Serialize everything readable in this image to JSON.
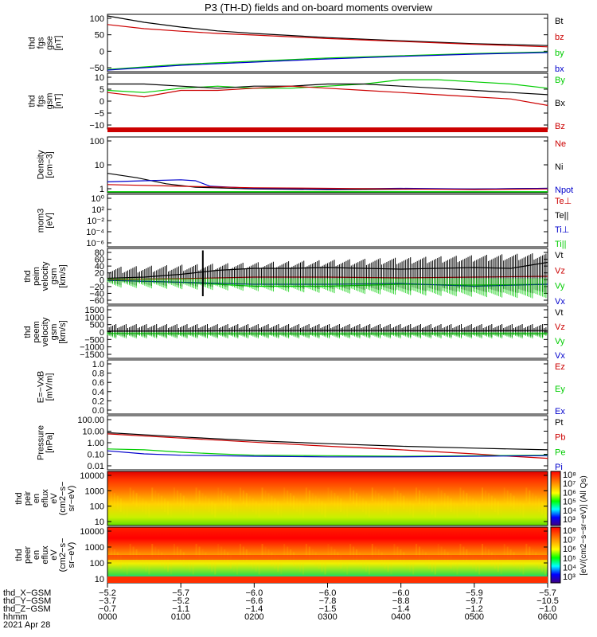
{
  "title": "P3 (TH-D) fields and on-board moments overview",
  "colors": {
    "black": "#000000",
    "red": "#cc0000",
    "green": "#00cc00",
    "blue": "#0000cc"
  },
  "chart_data": [
    {
      "type": "line",
      "ylabel": [
        "thd",
        "fgs",
        "gse",
        "[nT]"
      ],
      "ylim": [
        -70,
        110
      ],
      "ticks": [
        "100",
        "50",
        "0",
        "−50"
      ],
      "legend": [
        {
          "name": "Bt",
          "color": "black"
        },
        {
          "name": "bz",
          "color": "red"
        },
        {
          "name": "by",
          "color": "green"
        },
        {
          "name": "bx",
          "color": "blue"
        }
      ],
      "series": [
        {
          "name": "Bt",
          "color": "black",
          "x": [
            0,
            0.5,
            1,
            1.5,
            2,
            3,
            4,
            5,
            6
          ],
          "y": [
            105,
            85,
            70,
            58,
            50,
            37,
            27,
            18,
            12
          ]
        },
        {
          "name": "bz",
          "color": "red",
          "x": [
            0,
            0.5,
            1,
            1.5,
            2,
            3,
            4,
            5,
            6
          ],
          "y": [
            78,
            65,
            57,
            50,
            45,
            34,
            25,
            16,
            8
          ]
        },
        {
          "name": "by",
          "color": "green",
          "x": [
            0,
            1,
            2,
            3,
            4,
            5,
            6
          ],
          "y": [
            -63,
            -47,
            -37,
            -27,
            -20,
            -13,
            -8
          ]
        },
        {
          "name": "bx",
          "color": "blue",
          "x": [
            0,
            1,
            2,
            3,
            4,
            5,
            6
          ],
          "y": [
            -65,
            -50,
            -40,
            -30,
            -22,
            -15,
            -10
          ]
        }
      ]
    },
    {
      "type": "line",
      "ylabel": [
        "thd",
        "fgs",
        "gsm",
        "[nT]"
      ],
      "ylim": [
        -15,
        11
      ],
      "ticks": [
        "10",
        "5",
        "0",
        "−5",
        "−10"
      ],
      "legend": [
        {
          "name": "By",
          "color": "green"
        },
        {
          "name": "Bx",
          "color": "black"
        },
        {
          "name": "Bz",
          "color": "red"
        }
      ],
      "series": [
        {
          "name": "By",
          "color": "green",
          "x": [
            0,
            0.5,
            1,
            1.5,
            2,
            2.5,
            3,
            3.5,
            4,
            4.5,
            5,
            5.5,
            6
          ],
          "y": [
            3,
            2,
            4,
            5,
            4,
            4,
            5,
            6,
            8,
            8,
            7,
            6,
            4
          ]
        },
        {
          "name": "Bx",
          "color": "black",
          "x": [
            0,
            0.5,
            1,
            1.5,
            2,
            2.5,
            3,
            3.5,
            4,
            4.5,
            5,
            5.5,
            6
          ],
          "y": [
            6,
            6,
            5,
            4,
            5,
            5,
            6,
            6,
            5,
            4,
            3,
            2,
            1
          ]
        },
        {
          "name": "Bz",
          "color": "red",
          "x": [
            0,
            0.5,
            1,
            1.5,
            2,
            2.5,
            3,
            3.5,
            4,
            4.5,
            5,
            5.5,
            6
          ],
          "y": [
            2,
            0,
            3,
            3,
            4,
            5,
            4,
            3,
            2,
            1,
            0,
            -1,
            -4
          ]
        }
      ]
    },
    {
      "type": "line",
      "ylabel": [
        "Density",
        "[cm−3]"
      ],
      "log": true,
      "ylim": [
        0.5,
        200
      ],
      "ticks": [
        "100",
        "10",
        "1"
      ],
      "legend": [
        {
          "name": "Ne",
          "color": "red"
        },
        {
          "name": "Ni",
          "color": "black"
        },
        {
          "name": "Npot",
          "color": "blue"
        }
      ],
      "series": [
        {
          "name": "Ni",
          "color": "black",
          "x": [
            0,
            0.4,
            0.8,
            1.2,
            2,
            3,
            4,
            5,
            6
          ],
          "y": [
            4,
            2.5,
            1.3,
            0.9,
            0.75,
            0.7,
            0.72,
            0.75,
            0.8
          ]
        },
        {
          "name": "Npot",
          "color": "blue",
          "x": [
            0,
            0.5,
            1,
            1.2,
            1.4,
            2,
            3,
            4,
            5,
            6
          ],
          "y": [
            1.6,
            1.8,
            2.0,
            1.8,
            1.0,
            0.8,
            0.75,
            0.8,
            0.75,
            0.8
          ]
        },
        {
          "name": "Ne",
          "color": "red",
          "x": [
            0,
            1,
            2,
            3,
            4,
            5,
            6
          ],
          "y": [
            1.2,
            1.0,
            0.85,
            0.8,
            0.75,
            0.7,
            0.75
          ]
        }
      ]
    },
    {
      "type": "line",
      "ylabel": [
        "mom3",
        "[eV]"
      ],
      "log": true,
      "ylim": [
        1e-06,
        100
      ],
      "ticks": [
        "10⁰",
        "10²",
        "10⁻²",
        "10⁻⁴",
        "10⁻⁶"
      ],
      "legend": [
        {
          "name": "Te⊥",
          "color": "red"
        },
        {
          "name": "Te||",
          "color": "black"
        },
        {
          "name": "Ti⊥",
          "color": "blue"
        },
        {
          "name": "Ti||",
          "color": "green"
        }
      ],
      "series": []
    },
    {
      "type": "line",
      "ylabel": [
        "thd",
        "peim",
        "velocity",
        "gsm",
        "[km/s]"
      ],
      "ylim": [
        -60,
        80
      ],
      "ticks": [
        "80",
        "60",
        "40",
        "20",
        "0",
        "−20",
        "−40",
        "−60"
      ],
      "legend": [
        {
          "name": "Vt",
          "color": "black"
        },
        {
          "name": "Vz",
          "color": "red"
        },
        {
          "name": "Vy",
          "color": "green"
        },
        {
          "name": "Vx",
          "color": "blue"
        }
      ],
      "series": [
        {
          "name": "Vt",
          "color": "black",
          "x": [
            0,
            0.5,
            1,
            1.5,
            2,
            2.5,
            3,
            3.5,
            4,
            4.5,
            5,
            5.5,
            6
          ],
          "y": [
            5,
            8,
            15,
            25,
            30,
            30,
            32,
            30,
            28,
            30,
            32,
            30,
            45
          ]
        },
        {
          "name": "Vz",
          "color": "red",
          "x": [
            0,
            1,
            2,
            3,
            4,
            5,
            6
          ],
          "y": [
            2,
            4,
            8,
            8,
            6,
            8,
            10
          ]
        },
        {
          "name": "Vy",
          "color": "green",
          "x": [
            0,
            1,
            2,
            3,
            4,
            5,
            6
          ],
          "y": [
            0,
            -5,
            -15,
            -15,
            -10,
            -12,
            -10
          ]
        },
        {
          "name": "Vx",
          "color": "blue",
          "x": [
            0,
            1,
            2,
            3,
            4,
            5,
            6
          ],
          "y": [
            0,
            -5,
            -10,
            -10,
            -8,
            -15,
            -10
          ]
        }
      ]
    },
    {
      "type": "line",
      "ylabel": [
        "thd",
        "peem",
        "velocity",
        "gsm",
        "[km/s]"
      ],
      "ylim": [
        -1500,
        1500
      ],
      "ticks": [
        "1500",
        "1000",
        "500",
        "0",
        "−500",
        "−1000",
        "−1500"
      ],
      "legend": [
        {
          "name": "Vt",
          "color": "black"
        },
        {
          "name": "Vz",
          "color": "red"
        },
        {
          "name": "Vy",
          "color": "green"
        },
        {
          "name": "Vx",
          "color": "blue"
        }
      ],
      "series": [
        {
          "name": "Vt",
          "color": "black",
          "x": [
            0,
            1,
            2,
            3,
            4,
            5,
            6
          ],
          "y": [
            50,
            60,
            80,
            90,
            80,
            70,
            80
          ]
        },
        {
          "name": "Vy",
          "color": "green",
          "x": [
            0,
            1,
            2,
            3,
            4,
            5,
            6
          ],
          "y": [
            -80,
            -90,
            -100,
            -110,
            -100,
            -90,
            -90
          ]
        }
      ]
    },
    {
      "type": "line",
      "ylabel": [
        "E=−VxB",
        "[mV/m]"
      ],
      "ylim": [
        0,
        1
      ],
      "ticks": [
        "1.0",
        "0.8",
        "0.6",
        "0.4",
        "0.2",
        "0.0"
      ],
      "legend": [
        {
          "name": "Ez",
          "color": "red"
        },
        {
          "name": "Ey",
          "color": "green"
        },
        {
          "name": "Ex",
          "color": "blue"
        }
      ],
      "series": []
    },
    {
      "type": "line",
      "ylabel": [
        "Pressure",
        "[nPa]"
      ],
      "log": true,
      "ylim": [
        0.01,
        100
      ],
      "ticks": [
        "100.00",
        "10.00",
        "1.00",
        "0.10",
        "0.01"
      ],
      "legend": [
        {
          "name": "Pt",
          "color": "black"
        },
        {
          "name": "Pb",
          "color": "red"
        },
        {
          "name": "Pe",
          "color": "green"
        },
        {
          "name": "Pi",
          "color": "blue"
        }
      ],
      "series": [
        {
          "name": "Pt",
          "color": "black",
          "x": [
            0,
            1,
            2,
            3,
            4,
            5,
            6
          ],
          "y": [
            5.5,
            2.7,
            1.4,
            0.85,
            0.55,
            0.4,
            0.3
          ]
        },
        {
          "name": "Pb",
          "color": "red",
          "x": [
            0,
            1,
            2,
            3,
            4,
            5,
            5.5,
            6
          ],
          "y": [
            4.5,
            2.2,
            1.1,
            0.55,
            0.3,
            0.15,
            0.1,
            0.07
          ]
        },
        {
          "name": "Pe",
          "color": "green",
          "x": [
            0,
            0.5,
            1,
            1.5,
            2,
            3,
            4,
            5,
            6
          ],
          "y": [
            0.35,
            0.3,
            0.2,
            0.15,
            0.12,
            0.11,
            0.1,
            0.11,
            0.12
          ]
        },
        {
          "name": "Pi",
          "color": "blue",
          "x": [
            0,
            0.5,
            1,
            1.5,
            2,
            3,
            4,
            5,
            6
          ],
          "y": [
            0.25,
            0.15,
            0.12,
            0.11,
            0.1,
            0.09,
            0.09,
            0.1,
            0.11
          ]
        }
      ]
    },
    {
      "type": "heatmap",
      "ylabel": [
        "thd",
        "peir",
        "en",
        "eflux",
        "eV",
        "(cm2−s−",
        "sr−eV)"
      ],
      "log": true,
      "ylim": [
        5,
        40000
      ],
      "ticks": [
        "10000",
        "1000",
        "100",
        "10"
      ],
      "colorbar": {
        "ticks": [
          "10⁸",
          "10⁷",
          "10⁶",
          "10⁵",
          "10⁴",
          "10³"
        ]
      }
    },
    {
      "type": "heatmap",
      "ylabel": [
        "thd",
        "peer",
        "en",
        "eflux",
        "eV",
        "(cm2−s−",
        "sr−eV)"
      ],
      "log": true,
      "ylim": [
        5,
        40000
      ],
      "ticks": [
        "10000",
        "1000",
        "100",
        "10"
      ],
      "colorbar": {
        "ticks": [
          "10⁸",
          "10⁷",
          "10⁶",
          "10⁵",
          "10⁴",
          "10³"
        ]
      }
    }
  ],
  "colorbar_unit": "[eV/(cm2−s−sr−eV)] (All Qs)",
  "time_axis": {
    "labels": [
      "thd_X−GSM",
      "thd_Y−GSM",
      "thd_Z−GSM",
      "hhmm",
      "2021 Apr 28"
    ],
    "columns": [
      {
        "t": 0,
        "vals": [
          "−5.2",
          "−3.7",
          "−0.7",
          "0000"
        ]
      },
      {
        "t": 1,
        "vals": [
          "−5.7",
          "−5.2",
          "−1.1",
          "0100"
        ]
      },
      {
        "t": 2,
        "vals": [
          "−6.0",
          "−6.6",
          "−1.4",
          "0200"
        ]
      },
      {
        "t": 3,
        "vals": [
          "−6.0",
          "−7.8",
          "−1.5",
          "0300"
        ]
      },
      {
        "t": 4,
        "vals": [
          "−6.0",
          "−8.8",
          "−1.4",
          "0400"
        ]
      },
      {
        "t": 5,
        "vals": [
          "−5.9",
          "−9.7",
          "−1.2",
          "0500"
        ]
      },
      {
        "t": 6,
        "vals": [
          "−5.7",
          "−10.5",
          "−1.0",
          "0600"
        ]
      }
    ]
  }
}
